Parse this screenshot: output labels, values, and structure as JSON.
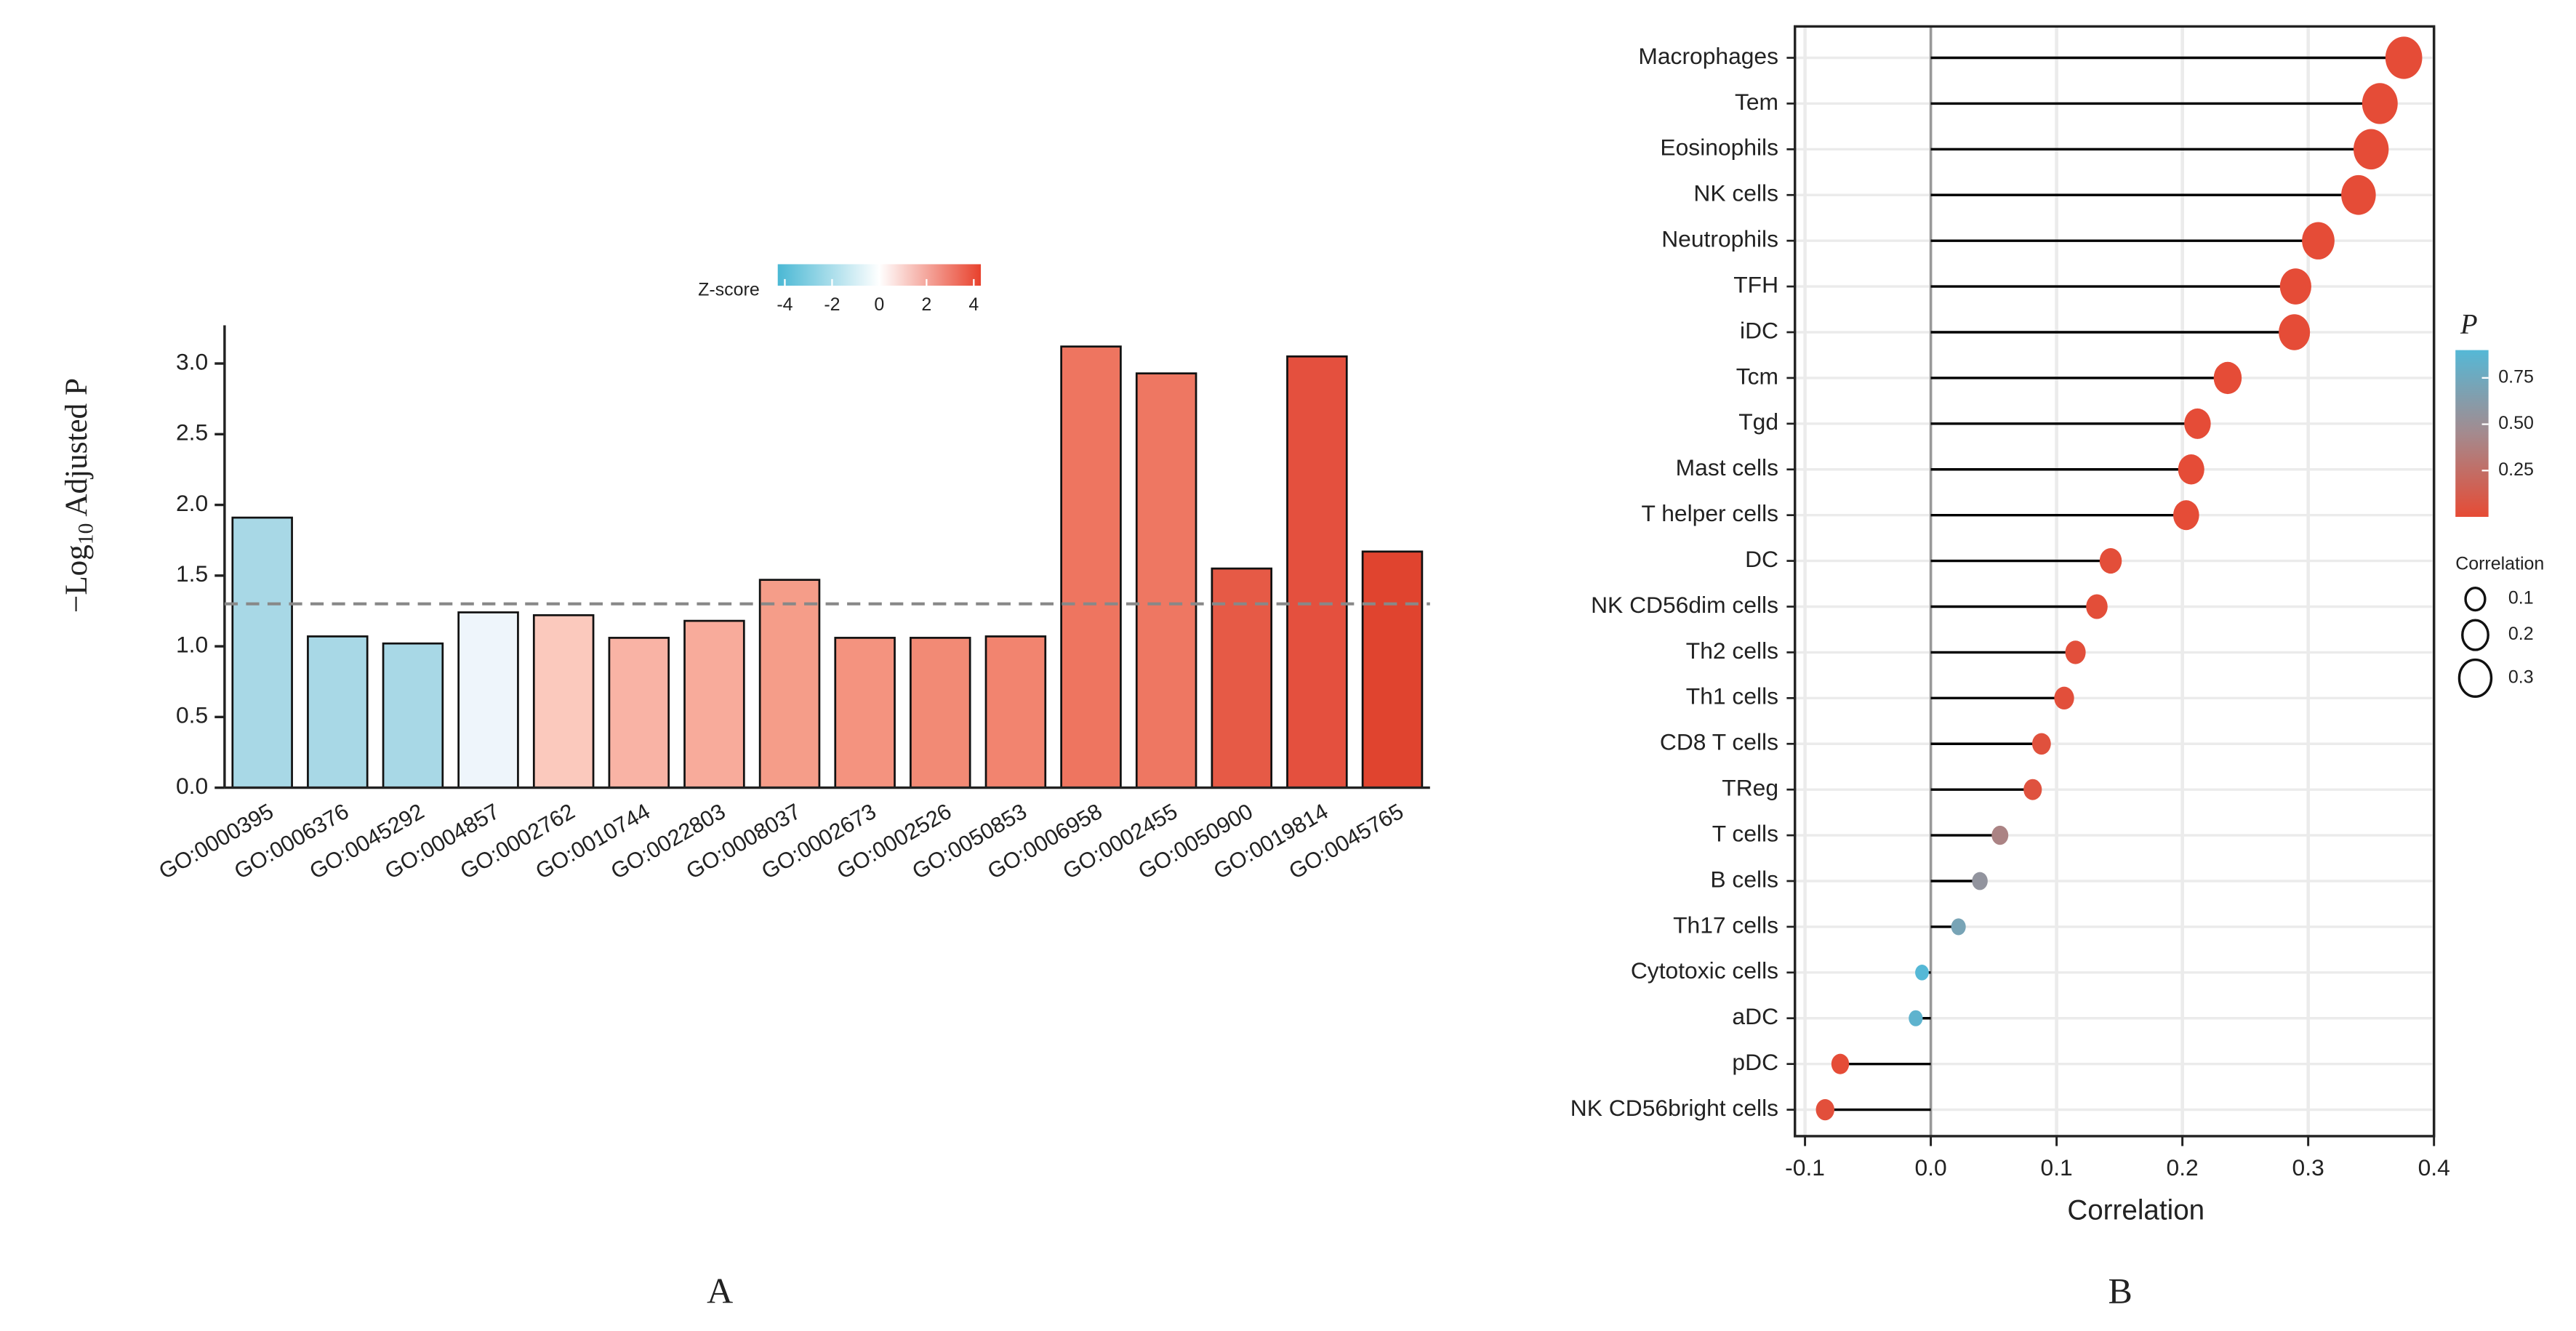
{
  "chart_data": [
    {
      "type": "bar",
      "panel_label": "A",
      "ylabel": {
        "prefix": "−Log",
        "subscript": "10",
        "suffix": "Adjusted P"
      },
      "categories": [
        "GO:0000395",
        "GO:0006376",
        "GO:0045292",
        "GO:0004857",
        "GO:0002762",
        "GO:0010744",
        "GO:0022803",
        "GO:0008037",
        "GO:0002673",
        "GO:0002526",
        "GO:0050853",
        "GO:0006958",
        "GO:0002455",
        "GO:0050900",
        "GO:0019814",
        "GO:0045765"
      ],
      "values": [
        1.91,
        1.07,
        1.02,
        1.24,
        1.22,
        1.06,
        1.18,
        1.47,
        1.06,
        1.06,
        1.07,
        3.12,
        2.93,
        1.55,
        3.05,
        1.67
      ],
      "colors": [
        "#a8d8e6",
        "#a8d8e6",
        "#a8d8e6",
        "#eef5fb",
        "#fbc9bd",
        "#f9b3a5",
        "#f8ab9b",
        "#f59d89",
        "#f4937f",
        "#f28a75",
        "#f2846f",
        "#ee7560",
        "#ee7762",
        "#e65a46",
        "#e4503e",
        "#e0442f"
      ],
      "ylim": [
        0,
        3.27
      ],
      "yticks": [
        {
          "value": 0,
          "label": "0.0"
        },
        0.5,
        {
          "value": 1,
          "label": "1.0"
        },
        1.5,
        {
          "value": 2,
          "label": "2.0"
        },
        2.5,
        {
          "value": 3,
          "label": "3.0"
        }
      ],
      "reference_line": 1.3,
      "colorbar": {
        "title": "Z-score",
        "lim": [
          -4.3,
          4.3
        ],
        "ticks": [
          -4,
          -2,
          0,
          2,
          4
        ],
        "colors": [
          "#4ab8d4",
          "#ffffff",
          "#e8412c"
        ]
      }
    },
    {
      "type": "lollipop",
      "panel_label": "B",
      "xlabel": "Correlation",
      "categories": [
        "Macrophages",
        "Tem",
        "Eosinophils",
        "NK cells",
        "Neutrophils",
        "TFH",
        "iDC",
        "Tcm",
        "Tgd",
        "Mast cells",
        "T helper cells",
        "DC",
        "NK CD56dim cells",
        "Th2 cells",
        "Th1 cells",
        "CD8 T cells",
        "TReg",
        "T cells",
        "B cells",
        "Th17 cells",
        "Cytotoxic cells",
        "aDC",
        "pDC",
        "NK CD56bright cells"
      ],
      "values": [
        0.376,
        0.357,
        0.35,
        0.34,
        0.308,
        0.29,
        0.289,
        0.236,
        0.212,
        0.207,
        0.203,
        0.143,
        0.132,
        0.115,
        0.106,
        0.088,
        0.081,
        0.055,
        0.039,
        0.022,
        -0.007,
        -0.012,
        -0.072,
        -0.084
      ],
      "p_values": [
        0.01,
        0.01,
        0.01,
        0.01,
        0.01,
        0.01,
        0.01,
        0.01,
        0.01,
        0.01,
        0.01,
        0.02,
        0.02,
        0.03,
        0.03,
        0.04,
        0.05,
        0.4,
        0.55,
        0.7,
        0.9,
        0.85,
        0.01,
        0.03
      ],
      "xlim": [
        -0.108,
        0.4
      ],
      "xticks": [
        -0.1,
        {
          "value": 0,
          "label": "0.0"
        },
        0.1,
        0.2,
        0.3,
        0.4
      ],
      "grid": true,
      "stem_color": "#000000",
      "color_legend": {
        "title": "P",
        "lim": [
          0,
          0.9
        ],
        "ticks": [
          0.25,
          {
            "value": 0.5,
            "label": "0.50"
          },
          0.75
        ],
        "colors": [
          "#e64b35",
          "#a48a8e",
          "#55b8d6"
        ]
      },
      "size_legend": {
        "title": "Correlation",
        "values": [
          0.1,
          0.2,
          0.3
        ]
      }
    }
  ]
}
